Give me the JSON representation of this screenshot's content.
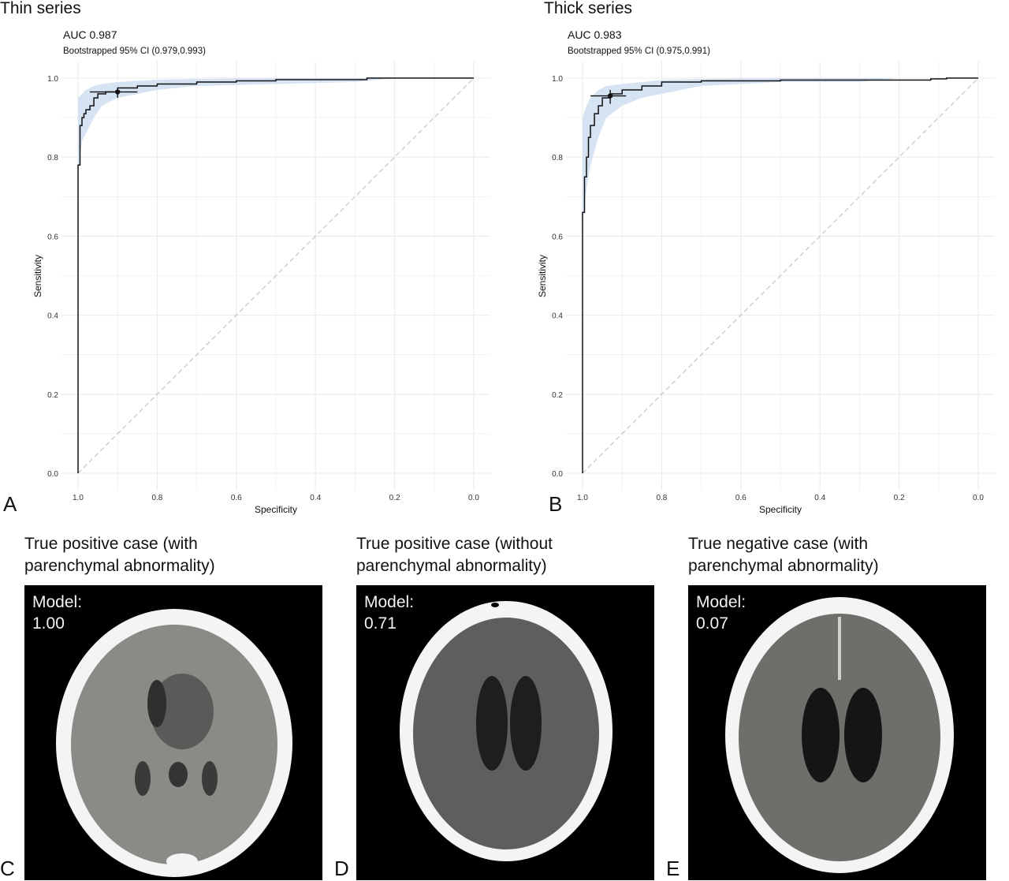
{
  "chart_data": [
    {
      "type": "line",
      "panel_letter": "A",
      "title": "Thin series",
      "auc_text": "AUC 0.987",
      "ci_text": "Bootstrapped 95% CI (0.979,0.993)",
      "xlabel": "Specificity",
      "ylabel": "Sensitivity",
      "xlim": [
        1.0,
        0.0
      ],
      "ylim": [
        0.0,
        1.0
      ],
      "x_ticks": [
        "1.0",
        "0.8",
        "0.6",
        "0.4",
        "0.2",
        "0.0"
      ],
      "y_ticks": [
        "0.0",
        "0.2",
        "0.4",
        "0.6",
        "0.8",
        "1.0"
      ],
      "grid": true,
      "roc_curve": {
        "specificity": [
          1.0,
          1.0,
          0.995,
          0.995,
          0.99,
          0.99,
          0.985,
          0.985,
          0.98,
          0.98,
          0.97,
          0.97,
          0.96,
          0.96,
          0.95,
          0.95,
          0.93,
          0.93,
          0.9,
          0.9,
          0.85,
          0.85,
          0.8,
          0.8,
          0.7,
          0.7,
          0.6,
          0.6,
          0.5,
          0.5,
          0.27,
          0.27,
          0.0
        ],
        "sensitivity": [
          0.0,
          0.78,
          0.78,
          0.88,
          0.88,
          0.9,
          0.9,
          0.91,
          0.91,
          0.92,
          0.92,
          0.93,
          0.93,
          0.95,
          0.95,
          0.96,
          0.96,
          0.965,
          0.965,
          0.975,
          0.975,
          0.98,
          0.98,
          0.985,
          0.985,
          0.99,
          0.99,
          0.993,
          0.993,
          0.996,
          0.996,
          1.0,
          1.0
        ]
      },
      "ci_band": {
        "specificity": [
          1.0,
          0.99,
          0.98,
          0.96,
          0.94,
          0.9,
          0.85,
          0.8,
          0.7,
          0.5,
          0.3,
          0.2
        ],
        "upper": [
          0.95,
          0.96,
          0.97,
          0.98,
          0.985,
          0.99,
          0.993,
          0.996,
          0.998,
          1.0,
          1.0,
          1.0
        ],
        "lower": [
          0.76,
          0.84,
          0.86,
          0.9,
          0.93,
          0.95,
          0.96,
          0.97,
          0.98,
          0.985,
          0.99,
          1.0
        ]
      },
      "operating_point": {
        "specificity": 0.9,
        "sensitivity": 0.965,
        "spec_ci": [
          0.97,
          0.85
        ],
        "sens_ci": [
          0.95,
          0.975
        ]
      },
      "reference_line": {
        "from": [
          1.0,
          0.0
        ],
        "to": [
          0.0,
          1.0
        ],
        "color": "#b9c8c8"
      },
      "colors": {
        "curve": "#111111",
        "band": "#d6e3f3",
        "grid": "#ebebeb"
      }
    },
    {
      "type": "line",
      "panel_letter": "B",
      "title": "Thick series",
      "auc_text": "AUC 0.983",
      "ci_text": "Bootstrapped 95% CI (0.975,0.991)",
      "xlabel": "Specificity",
      "ylabel": "Sensitivity",
      "xlim": [
        1.0,
        0.0
      ],
      "ylim": [
        0.0,
        1.0
      ],
      "x_ticks": [
        "1.0",
        "0.8",
        "0.6",
        "0.4",
        "0.2",
        "0.0"
      ],
      "y_ticks": [
        "0.0",
        "0.2",
        "0.4",
        "0.6",
        "0.8",
        "1.0"
      ],
      "grid": true,
      "roc_curve": {
        "specificity": [
          1.0,
          1.0,
          0.995,
          0.995,
          0.99,
          0.99,
          0.985,
          0.985,
          0.98,
          0.98,
          0.97,
          0.97,
          0.96,
          0.96,
          0.95,
          0.95,
          0.93,
          0.93,
          0.9,
          0.9,
          0.85,
          0.85,
          0.8,
          0.8,
          0.7,
          0.7,
          0.5,
          0.5,
          0.12,
          0.12,
          0.08,
          0.08,
          0.0
        ],
        "sensitivity": [
          0.0,
          0.66,
          0.66,
          0.75,
          0.75,
          0.8,
          0.8,
          0.85,
          0.85,
          0.88,
          0.88,
          0.91,
          0.91,
          0.93,
          0.93,
          0.95,
          0.95,
          0.96,
          0.96,
          0.97,
          0.97,
          0.98,
          0.98,
          0.99,
          0.99,
          0.993,
          0.993,
          0.995,
          0.995,
          0.998,
          0.998,
          1.0,
          1.0
        ]
      },
      "ci_band": {
        "specificity": [
          1.0,
          0.99,
          0.98,
          0.96,
          0.94,
          0.9,
          0.85,
          0.8,
          0.7,
          0.5,
          0.3,
          0.2
        ],
        "upper": [
          0.9,
          0.93,
          0.95,
          0.97,
          0.98,
          0.985,
          0.99,
          0.995,
          0.998,
          1.0,
          1.0,
          1.0
        ],
        "lower": [
          0.63,
          0.72,
          0.78,
          0.85,
          0.9,
          0.93,
          0.95,
          0.96,
          0.98,
          0.99,
          0.99,
          1.0
        ]
      },
      "operating_point": {
        "specificity": 0.93,
        "sensitivity": 0.955,
        "spec_ci": [
          0.98,
          0.89
        ],
        "sens_ci": [
          0.935,
          0.97
        ]
      },
      "reference_line": {
        "from": [
          1.0,
          0.0
        ],
        "to": [
          0.0,
          1.0
        ],
        "color": "#b9c8c8"
      },
      "colors": {
        "curve": "#111111",
        "band": "#d6e3f3",
        "grid": "#ebebeb"
      }
    }
  ],
  "scans": [
    {
      "panel_letter": "C",
      "title": "True positive case (with\nparenchymal abnormality)",
      "model_label": "Model:",
      "model_score": "1.00"
    },
    {
      "panel_letter": "D",
      "title": "True positive case (without\nparenchymal abnormality)",
      "model_label": "Model:",
      "model_score": "0.71"
    },
    {
      "panel_letter": "E",
      "title": "True negative case (with\nparenchymal abnormality)",
      "model_label": "Model:",
      "model_score": "0.07"
    }
  ]
}
